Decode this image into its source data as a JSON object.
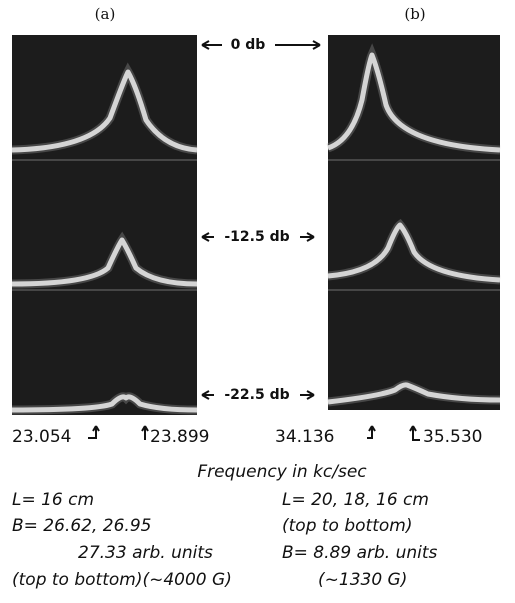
{
  "panel_labels": [
    "(a)",
    "(b)"
  ],
  "attenuation_labels": [
    "0 db",
    "-12.5 db",
    "-22.5 db"
  ],
  "frequency_markers": {
    "a": [
      "23.054",
      "23.899"
    ],
    "b": [
      "34.136",
      "35.530"
    ]
  },
  "axis_caption": "Frequency in kc/sec",
  "caption_a": [
    "L= 16 cm",
    "B= 26.62, 26.95",
    "27.33 arb. units",
    "(top to bottom)(~4000 G)"
  ],
  "caption_b": [
    "L= 20, 18, 16 cm",
    "(top to bottom)",
    "B= 8.89 arb. units",
    "(~1330 G)"
  ]
}
